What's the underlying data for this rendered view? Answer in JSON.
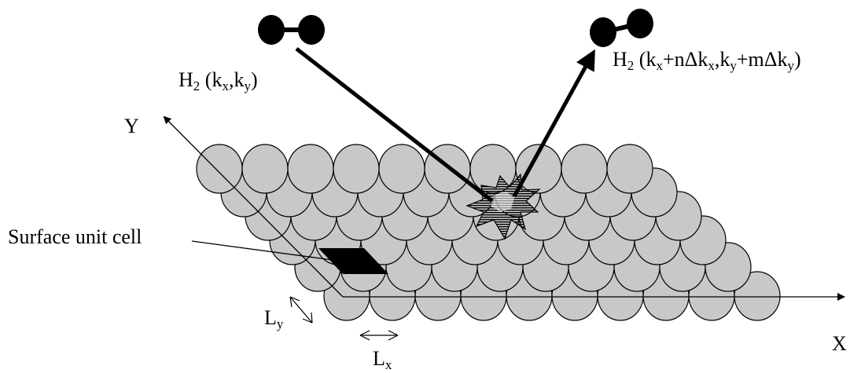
{
  "molecules": {
    "incident": {
      "symbol": "H",
      "subscript": "2",
      "open": " (k",
      "k1_sub": "x",
      "mid": ",k",
      "k2_sub": "y",
      "close": ")"
    },
    "scattered": {
      "symbol": "H",
      "subscript": "2",
      "p1": " (k",
      "s1": "x",
      "p2": "+nΔk",
      "s2": "x",
      "p3": ",k",
      "s3": "y",
      "p4": "+mΔk",
      "s4": "y",
      "p5": ")"
    }
  },
  "axes": {
    "x_label": "X",
    "y_label": "Y"
  },
  "surface": {
    "unit_cell_label": "Surface unit cell",
    "rows": 6,
    "atoms_per_row": 10,
    "atom_fill": "#c8c8c8",
    "atom_stroke": "#000000",
    "cell_fill": "#000000"
  },
  "lattice": {
    "lx": {
      "letter": "L",
      "sub": "x"
    },
    "ly": {
      "letter": "L",
      "sub": "y"
    }
  },
  "colors": {
    "ink": "#000000",
    "background": "#ffffff"
  }
}
